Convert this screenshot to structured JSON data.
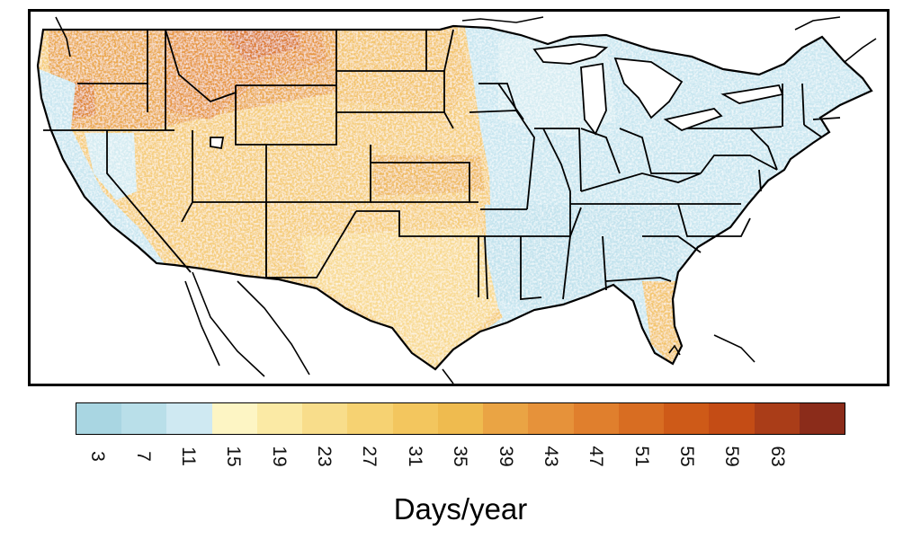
{
  "map": {
    "region": "Contiguous United States",
    "fill_scale": "Days/year",
    "background_color": "#ffffff",
    "border_color": "#000000",
    "regions": [
      {
        "name": "Northern Rockies / Montana",
        "value": 44,
        "color": "#e7963a"
      },
      {
        "name": "Idaho / Wyoming",
        "value": 38,
        "color": "#eba84a"
      },
      {
        "name": "Eastern Oregon",
        "value": 36,
        "color": "#eeae52"
      },
      {
        "name": "Great Plains",
        "value": 28,
        "color": "#f3c66d"
      },
      {
        "name": "Southwest",
        "value": 24,
        "color": "#f6d07c"
      },
      {
        "name": "Texas",
        "value": 20,
        "color": "#f8dc94"
      },
      {
        "name": "Florida",
        "value": 24,
        "color": "#f6cf7a"
      },
      {
        "name": "Pacific Coast",
        "value": 8,
        "color": "#cbe7f0"
      },
      {
        "name": "Southeast",
        "value": 6,
        "color": "#c2e3ee"
      },
      {
        "name": "Midwest and Northeast",
        "value": 6,
        "color": "#c8e6f0"
      }
    ]
  },
  "colorbar": {
    "colors": [
      "#a9d6e2",
      "#b9dfe9",
      "#cfe9f2",
      "#fdf5c4",
      "#fbeaa5",
      "#f8dd8b",
      "#f6d272",
      "#f3c65e",
      "#efbb4f",
      "#eaa444",
      "#e6923a",
      "#e07f2d",
      "#d86d22",
      "#ce5a18",
      "#c44c15",
      "#aa3d18",
      "#8b2c1a"
    ],
    "tick_labels": [
      "3",
      "7",
      "11",
      "15",
      "19",
      "23",
      "27",
      "31",
      "35",
      "39",
      "43",
      "47",
      "51",
      "55",
      "59",
      "63"
    ],
    "units": "Days/year"
  }
}
